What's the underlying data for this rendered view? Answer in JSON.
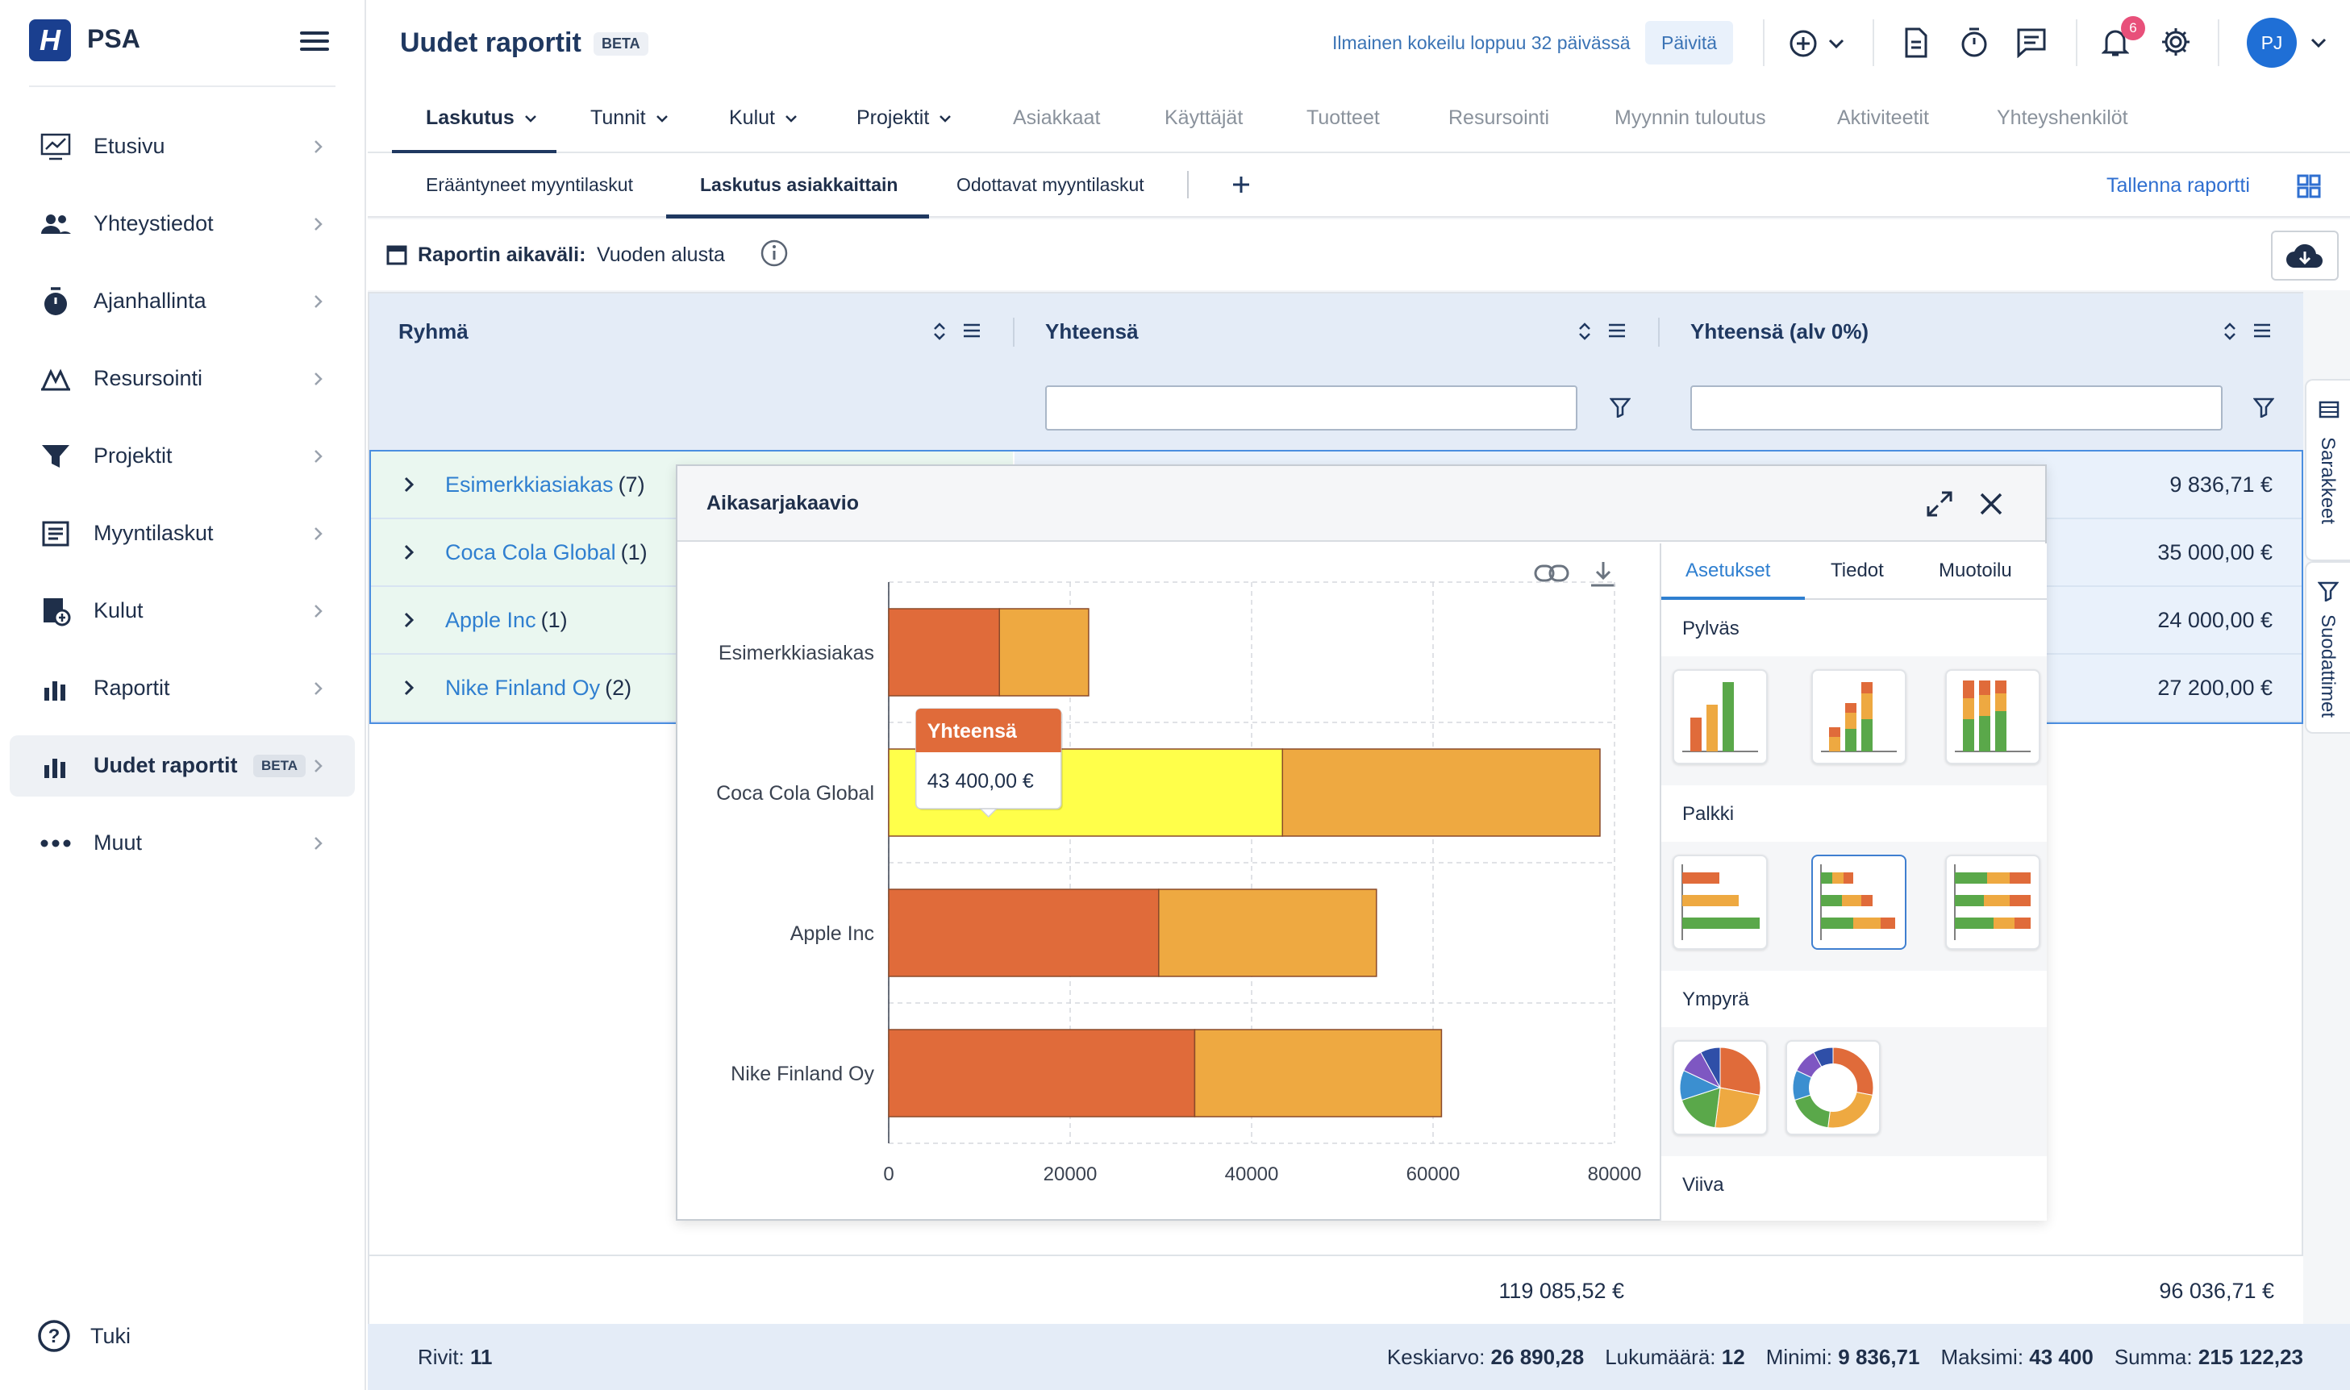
{
  "app": {
    "name": "PSA",
    "logo_letter": "H"
  },
  "sidebar": {
    "items": [
      {
        "label": "Etusivu",
        "icon": "chart-line-icon"
      },
      {
        "label": "Yhteystiedot",
        "icon": "people-icon"
      },
      {
        "label": "Ajanhallinta",
        "icon": "stopwatch-icon"
      },
      {
        "label": "Resursointi",
        "icon": "resource-icon"
      },
      {
        "label": "Projektit",
        "icon": "funnel-icon"
      },
      {
        "label": "Myyntilaskut",
        "icon": "invoice-icon"
      },
      {
        "label": "Kulut",
        "icon": "expense-icon"
      },
      {
        "label": "Raportit",
        "icon": "bar-chart-icon"
      },
      {
        "label": "Uudet raportit",
        "icon": "bar-chart-icon",
        "badge": "BETA",
        "active": true
      },
      {
        "label": "Muut",
        "icon": "dots-icon"
      }
    ],
    "help_label": "Tuki"
  },
  "header": {
    "title": "Uudet raportit",
    "title_badge": "BETA",
    "trial_text": "Ilmainen kokeilu loppuu 32 päivässä",
    "update_button": "Päivitä",
    "notification_count": "6",
    "avatar_initials": "PJ"
  },
  "main_tabs": [
    {
      "label": "Laskutus",
      "active": true,
      "dropdown": true
    },
    {
      "label": "Tunnit",
      "dropdown": true
    },
    {
      "label": "Kulut",
      "dropdown": true
    },
    {
      "label": "Projektit",
      "dropdown": true
    },
    {
      "label": "Asiakkaat"
    },
    {
      "label": "Käyttäjät"
    },
    {
      "label": "Tuotteet"
    },
    {
      "label": "Resursointi"
    },
    {
      "label": "Myynnin tuloutus"
    },
    {
      "label": "Aktiviteetit"
    },
    {
      "label": "Yhteyshenkilöt"
    }
  ],
  "sub_tabs": [
    {
      "label": "Erääntyneet myyntilaskut"
    },
    {
      "label": "Laskutus asiakkaittain",
      "active": true
    },
    {
      "label": "Odottavat myyntilaskut"
    }
  ],
  "save_report": "Tallenna raportti",
  "period": {
    "label": "Raportin aikaväli:",
    "value": "Vuoden alusta"
  },
  "grid": {
    "columns": [
      "Ryhmä",
      "Yhteensä",
      "Yhteensä (alv 0%)"
    ],
    "rows": [
      {
        "name": "Esimerkkiasiakas",
        "count": "(7)",
        "vat0": "9 836,71 €"
      },
      {
        "name": "Coca Cola Global",
        "count": "(1)",
        "vat0": "35 000,00 €"
      },
      {
        "name": "Apple Inc",
        "count": "(1)",
        "vat0": "24 000,00 €"
      },
      {
        "name": "Nike Finland Oy",
        "count": "(2)",
        "vat0": "27 200,00 €"
      }
    ],
    "totals": {
      "total": "119 085,52 €",
      "vat0": "96 036,71 €"
    }
  },
  "side_tabs": [
    "Sarakkeet",
    "Suodattimet"
  ],
  "status_bar": {
    "rows_label": "Rivit:",
    "rows_value": "11",
    "avg_label": "Keskiarvo:",
    "avg_value": "26 890,28",
    "count_label": "Lukumäärä:",
    "count_value": "12",
    "min_label": "Minimi:",
    "min_value": "9 836,71",
    "max_label": "Maksimi:",
    "max_value": "43 400",
    "sum_label": "Summa:",
    "sum_value": "215 122,23"
  },
  "chart_window": {
    "title": "Aikasarjakaavio",
    "panel_tabs": [
      "Asetukset",
      "Tiedot",
      "Muotoilu"
    ],
    "sections": [
      "Pylväs",
      "Palkki",
      "Ympyrä",
      "Viiva"
    ],
    "tooltip": {
      "title": "Yhteensä",
      "value": "43 400,00 €"
    }
  },
  "chart_data": {
    "type": "bar",
    "orientation": "horizontal",
    "stacked": true,
    "categories": [
      "Esimerkkiasiakas",
      "Coca Cola Global",
      "Apple Inc",
      "Nike Finland Oy"
    ],
    "series": [
      {
        "name": "Yhteensä",
        "color": "#e06b3a",
        "values": [
          12200,
          43400,
          29760,
          33728
        ]
      },
      {
        "name": "Yhteensä (alv 0%)",
        "color": "#eea941",
        "values": [
          9836.71,
          35000,
          24000,
          27200
        ]
      }
    ],
    "xlim": [
      0,
      80000
    ],
    "xticks": [
      "0",
      "20000",
      "40000",
      "60000",
      "80000"
    ],
    "highlight": {
      "series": 0,
      "category": 1,
      "color": "#ffff4a"
    },
    "legend": "bottom",
    "grid": true
  }
}
